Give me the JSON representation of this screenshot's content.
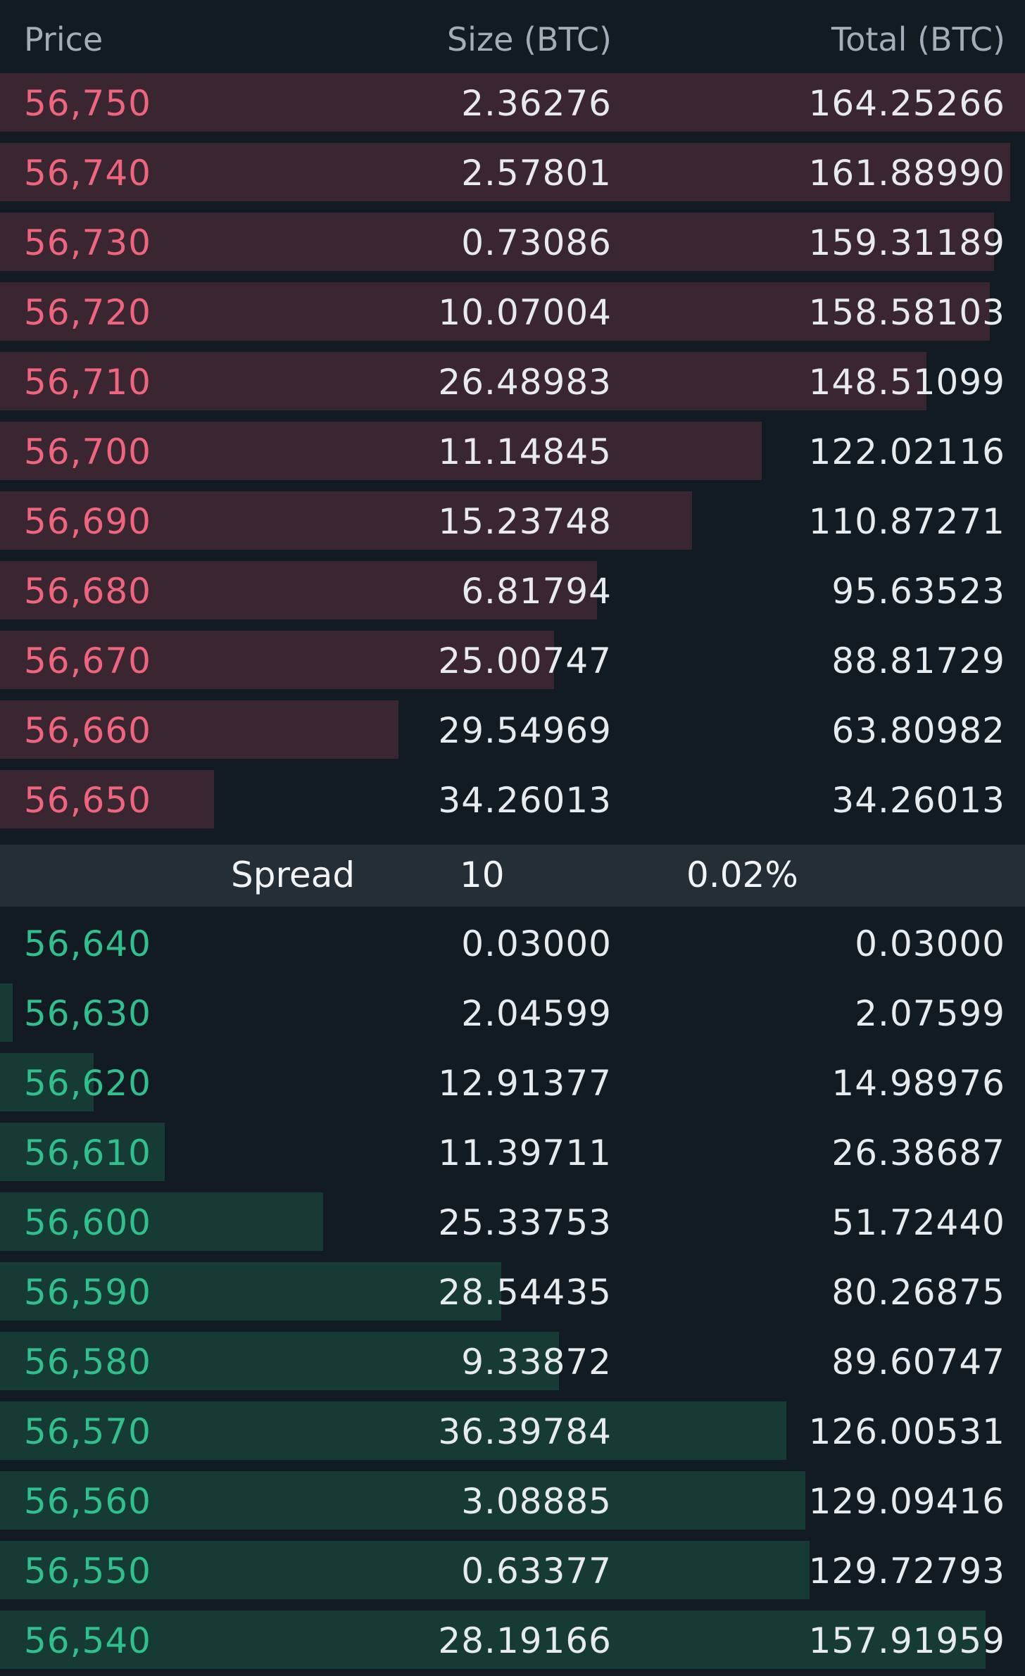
{
  "header": {
    "price_label": "Price",
    "size_label": "Size (BTC)",
    "total_label": "Total (BTC)"
  },
  "colors": {
    "ask_text": "#f0657e",
    "bid_text": "#2fc08e",
    "ask_bar": "#3a2630",
    "bid_bar": "#163a34",
    "background": "#121a22"
  },
  "asks": [
    {
      "price": "56,750",
      "size": "2.36276",
      "total": "164.25266",
      "depth": 164.25266
    },
    {
      "price": "56,740",
      "size": "2.57801",
      "total": "161.88990",
      "depth": 161.8899
    },
    {
      "price": "56,730",
      "size": "0.73086",
      "total": "159.31189",
      "depth": 159.31189
    },
    {
      "price": "56,720",
      "size": "10.07004",
      "total": "158.58103",
      "depth": 158.58103
    },
    {
      "price": "56,710",
      "size": "26.48983",
      "total": "148.51099",
      "depth": 148.51099
    },
    {
      "price": "56,700",
      "size": "11.14845",
      "total": "122.02116",
      "depth": 122.02116
    },
    {
      "price": "56,690",
      "size": "15.23748",
      "total": "110.87271",
      "depth": 110.87271
    },
    {
      "price": "56,680",
      "size": "6.81794",
      "total": "95.63523",
      "depth": 95.63523
    },
    {
      "price": "56,670",
      "size": "25.00747",
      "total": "88.81729",
      "depth": 88.81729
    },
    {
      "price": "56,660",
      "size": "29.54969",
      "total": "63.80982",
      "depth": 63.80982
    },
    {
      "price": "56,650",
      "size": "34.26013",
      "total": "34.26013",
      "depth": 34.26013
    }
  ],
  "spread": {
    "label": "Spread",
    "value": "10",
    "percent": "0.02%"
  },
  "bids": [
    {
      "price": "56,640",
      "size": "0.03000",
      "total": "0.03000",
      "depth": 0.03
    },
    {
      "price": "56,630",
      "size": "2.04599",
      "total": "2.07599",
      "depth": 2.07599
    },
    {
      "price": "56,620",
      "size": "12.91377",
      "total": "14.98976",
      "depth": 14.98976
    },
    {
      "price": "56,610",
      "size": "11.39711",
      "total": "26.38687",
      "depth": 26.38687
    },
    {
      "price": "56,600",
      "size": "25.33753",
      "total": "51.72440",
      "depth": 51.7244
    },
    {
      "price": "56,590",
      "size": "28.54435",
      "total": "80.26875",
      "depth": 80.26875
    },
    {
      "price": "56,580",
      "size": "9.33872",
      "total": "89.60747",
      "depth": 89.60747
    },
    {
      "price": "56,570",
      "size": "36.39784",
      "total": "126.00531",
      "depth": 126.00531
    },
    {
      "price": "56,560",
      "size": "3.08885",
      "total": "129.09416",
      "depth": 129.09416
    },
    {
      "price": "56,550",
      "size": "0.63377",
      "total": "129.72793",
      "depth": 129.72793
    },
    {
      "price": "56,540",
      "size": "28.19166",
      "total": "157.91959",
      "depth": 157.91959
    }
  ]
}
